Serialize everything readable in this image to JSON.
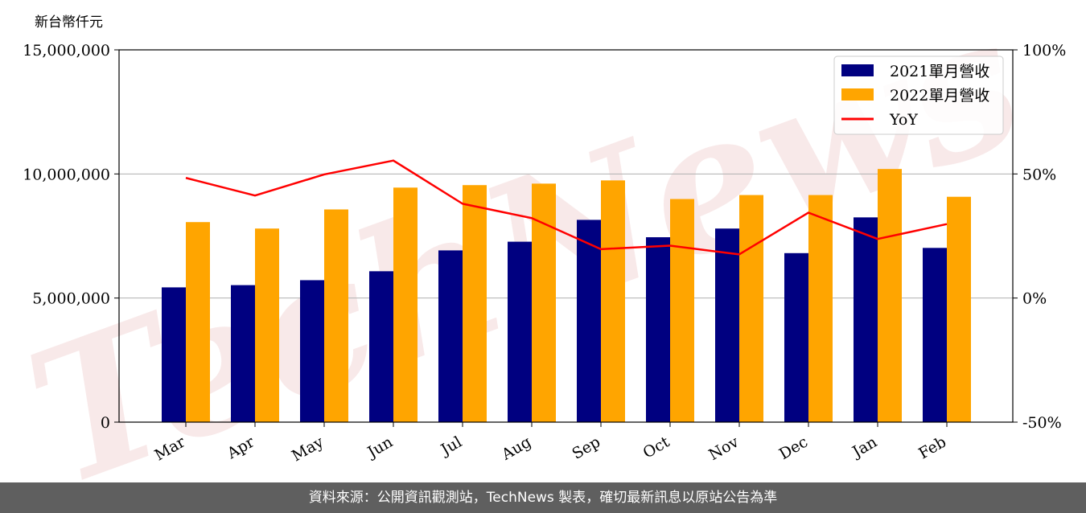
{
  "chart_data": {
    "type": "bar",
    "unit_label": "新台幣仟元",
    "categories": [
      "Mar",
      "Apr",
      "May",
      "Jun",
      "Jul",
      "Aug",
      "Sep",
      "Oct",
      "Nov",
      "Dec",
      "Jan",
      "Feb"
    ],
    "series": [
      {
        "name": "2021單月營收",
        "type": "bar",
        "axis": "left",
        "color": "#000080",
        "values": [
          5430000,
          5520000,
          5720000,
          6080000,
          6920000,
          7270000,
          8150000,
          7450000,
          7800000,
          6810000,
          8250000,
          7020000
        ]
      },
      {
        "name": "2022單月營收",
        "type": "bar",
        "axis": "left",
        "color": "#ffa500",
        "values": [
          8060000,
          7800000,
          8570000,
          9450000,
          9550000,
          9610000,
          9740000,
          8990000,
          9150000,
          9150000,
          10200000,
          9080000
        ]
      },
      {
        "name": "YoY",
        "type": "line",
        "axis": "right",
        "color": "#ff0000",
        "values": [
          48.4,
          41.3,
          49.8,
          55.4,
          38,
          32.2,
          19.7,
          21.1,
          17.6,
          34.4,
          23.8,
          29.8
        ]
      }
    ],
    "y_left": {
      "lim": [
        0,
        15000000
      ],
      "ticks": [
        0,
        5000000,
        10000000,
        15000000
      ],
      "tick_labels": [
        "0",
        "5,000,000",
        "10,000,000",
        "15,000,000"
      ]
    },
    "y_right": {
      "lim": [
        -50,
        100
      ],
      "ticks": [
        -50,
        0,
        50,
        100
      ],
      "tick_labels": [
        "-50%",
        "0%",
        "50%",
        "100%"
      ]
    },
    "grid": "horizontal",
    "legend_position": "top-right",
    "watermark": "TechNews"
  },
  "footer": {
    "source": "資料來源：公開資訊觀測站，TechNews 製表，確切最新訊息以原站公告為準"
  }
}
